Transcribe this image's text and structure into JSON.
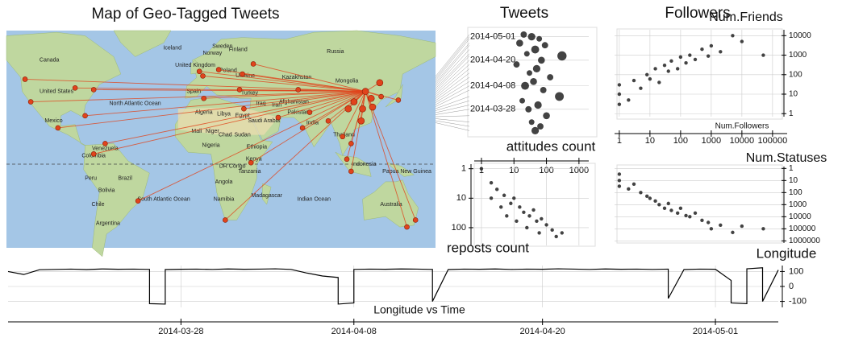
{
  "chart_data": [
    {
      "type": "map",
      "title": "Map of Geo-Tagged Tweets",
      "color": "#e0441c",
      "labels": [
        "Iceland",
        "Sweden",
        "Finland",
        "Norway",
        "Russia",
        "Canada",
        "United Kingdom",
        "Poland",
        "Ukraine",
        "Kazakhstan",
        "Mongolia",
        "United States",
        "North Atlantic Ocean",
        "Spain",
        "Turkey",
        "Iran",
        "Iraq",
        "Afghanistan",
        "Pakistan",
        "Algeria",
        "Libya",
        "Egypt",
        "Saudi Arabia",
        "India",
        "Thailand",
        "Mexico",
        "Mali",
        "Niger",
        "Chad",
        "Sudan",
        "Nigeria",
        "Ethiopia",
        "Venezuela",
        "Colombia",
        "DR Congo",
        "Tanzania",
        "Kenya",
        "Brazil",
        "Peru",
        "Bolivia",
        "Angola",
        "Namibia",
        "Madagascar",
        "Chile",
        "Indian Ocean",
        "South Atlantic Ocean",
        "Argentina",
        "Australia",
        "Indonesia",
        "Papua New Guinea"
      ],
      "lon": [
        116,
        121,
        113,
        104,
        120,
        114,
        108,
        126,
        -74,
        -118,
        -99,
        -87,
        -122,
        -80,
        -0.1,
        2.3,
        13.4,
        37.6,
        30,
        28,
        55,
        77,
        72,
        100,
        106,
        103,
        106,
        151,
        145,
        31,
        3,
        -66,
        -74,
        -43,
        36,
        18,
        69,
        90,
        127,
        139
      ],
      "lat": [
        40,
        31,
        23,
        30,
        36,
        30,
        34,
        45,
        41,
        34,
        19,
        42,
        47,
        26,
        51.5,
        48.9,
        52.5,
        55.8,
        50,
        41,
        25,
        28,
        19,
        14,
        10,
        1,
        -6,
        -34,
        -38,
        30,
        36,
        10,
        4,
        -23,
        -1,
        -34,
        41,
        23,
        37,
        35
      ]
    },
    {
      "type": "bubble",
      "title": "Tweets",
      "color": "#222222",
      "log_x": true,
      "xlim": [
        0.6,
        2000
      ],
      "x": [
        20,
        35,
        60,
        15,
        90,
        45,
        25,
        300,
        70,
        12,
        50,
        30,
        130,
        40,
        22,
        80,
        250,
        18,
        55,
        28,
        100,
        35,
        65,
        45
      ],
      "y": [
        "2014-05-02",
        "2014-05-01",
        "2014-04-30",
        "2014-04-28",
        "2014-04-27",
        "2014-04-25",
        "2014-04-23",
        "2014-04-22",
        "2014-04-20",
        "2014-04-18",
        "2014-04-16",
        "2014-04-14",
        "2014-04-12",
        "2014-04-10",
        "2014-04-08",
        "2014-04-06",
        "2014-04-03",
        "2014-04-01",
        "2014-03-30",
        "2014-03-28",
        "2014-03-25",
        "2014-03-22",
        "2014-03-20",
        "2014-03-18"
      ],
      "sizes": [
        3,
        5,
        2,
        4,
        3,
        6,
        2,
        9,
        4,
        3,
        5,
        2,
        3,
        4,
        6,
        3,
        8,
        2,
        5,
        3,
        4,
        2,
        3,
        5
      ],
      "ylim": [
        "2014-03-17",
        "2014-05-05"
      ],
      "yticks": [
        "2014-05-01",
        "2014-04-20",
        "2014-04-08",
        "2014-03-28"
      ]
    },
    {
      "type": "scatter",
      "title": "Followers",
      "x_label": "Num.Followers",
      "y_label": "Num.Friends",
      "color": "#222222",
      "log_x": true,
      "log_y": true,
      "grid": true,
      "x": [
        1,
        1,
        1,
        2,
        3,
        5,
        8,
        10,
        15,
        20,
        30,
        40,
        50,
        80,
        100,
        150,
        200,
        300,
        500,
        800,
        1000,
        2000,
        5000,
        10000,
        50000
      ],
      "y": [
        10,
        3,
        30,
        5,
        50,
        20,
        100,
        60,
        200,
        40,
        300,
        150,
        500,
        200,
        800,
        400,
        1000,
        600,
        2000,
        900,
        3000,
        1500,
        10000,
        5000,
        1000
      ],
      "xlim": [
        0.7,
        300000
      ],
      "ylim": [
        0.7,
        20000
      ],
      "xticks": [
        1,
        10,
        100,
        1000,
        10000,
        100000
      ],
      "yticks": [
        1,
        10,
        100,
        1000,
        10000
      ]
    },
    {
      "type": "scatter",
      "y_label": "Num.Statuses",
      "color": "#222222",
      "log_x": true,
      "log_y": true,
      "y_inverted": true,
      "grid": true,
      "x": [
        1,
        1,
        1,
        2,
        3,
        5,
        8,
        10,
        15,
        20,
        30,
        40,
        50,
        80,
        100,
        150,
        200,
        300,
        500,
        800,
        1000,
        2000,
        5000,
        10000,
        50000
      ],
      "y": [
        10,
        3,
        30,
        50,
        20,
        100,
        200,
        300,
        500,
        1000,
        2000,
        800,
        3000,
        5000,
        2000,
        8000,
        10000,
        5000,
        20000,
        30000,
        100000,
        50000,
        200000,
        60000,
        100000
      ],
      "xlim": [
        0.7,
        300000
      ],
      "ylim": [
        0.7,
        1500000
      ],
      "yticks": [
        1,
        10,
        100,
        1000,
        10000,
        100000,
        1000000
      ]
    },
    {
      "type": "scatter",
      "x_label": "attitudes count",
      "y_label": "reposts count",
      "color": "#222222",
      "log_x": true,
      "log_y": true,
      "y_inverted": true,
      "grid": true,
      "x": [
        1,
        2,
        3,
        5,
        8,
        10,
        15,
        20,
        30,
        40,
        50,
        70,
        100,
        150,
        200,
        300,
        2,
        4,
        6,
        12,
        25,
        60
      ],
      "y": [
        1,
        3,
        5,
        8,
        15,
        10,
        20,
        30,
        40,
        25,
        60,
        50,
        80,
        120,
        200,
        150,
        10,
        20,
        40,
        60,
        100,
        150
      ],
      "xlim": [
        0.6,
        2000
      ],
      "ylim": [
        0.7,
        400
      ],
      "xticks": [
        1,
        10,
        100,
        1000
      ],
      "yticks": [
        1,
        10,
        100
      ]
    },
    {
      "type": "line",
      "title": "Longitude vs Time",
      "y_label": "Longitude",
      "color": "#000000",
      "grid": true,
      "x": [
        "2014-03-17",
        "2014-03-18",
        "2014-03-19",
        "2014-03-20",
        "2014-03-21",
        "2014-03-22",
        "2014-03-23",
        "2014-03-24",
        "2014-03-25",
        "2014-03-26",
        "2014-03-26",
        "2014-03-27",
        "2014-03-27",
        "2014-03-28",
        "2014-03-29",
        "2014-03-30",
        "2014-03-31",
        "2014-04-01",
        "2014-04-02",
        "2014-04-03",
        "2014-04-04",
        "2014-04-05",
        "2014-04-06",
        "2014-04-07",
        "2014-04-07",
        "2014-04-08",
        "2014-04-08",
        "2014-04-09",
        "2014-04-10",
        "2014-04-11",
        "2014-04-12",
        "2014-04-13",
        "2014-04-13",
        "2014-04-14",
        "2014-04-15",
        "2014-04-16",
        "2014-04-17",
        "2014-04-18",
        "2014-04-19",
        "2014-04-20",
        "2014-04-21",
        "2014-04-22",
        "2014-04-23",
        "2014-04-24",
        "2014-04-25",
        "2014-04-26",
        "2014-04-27",
        "2014-04-28",
        "2014-04-28",
        "2014-04-29",
        "2014-04-30",
        "2014-05-01",
        "2014-05-02",
        "2014-05-02",
        "2014-05-03",
        "2014-05-03",
        "2014-05-04",
        "2014-05-04",
        "2014-05-05"
      ],
      "values": [
        100,
        80,
        112,
        114,
        116,
        113,
        117,
        115,
        116,
        114,
        -115,
        -118,
        113,
        115,
        116,
        114,
        117,
        115,
        116,
        118,
        114,
        90,
        70,
        60,
        -118,
        -110,
        114,
        116,
        115,
        117,
        116,
        114,
        -100,
        113,
        116,
        115,
        117,
        114,
        116,
        115,
        118,
        116,
        114,
        117,
        115,
        116,
        114,
        116,
        -80,
        113,
        116,
        115,
        40,
        -110,
        -115,
        118,
        125,
        -100,
        110
      ],
      "xlim": [
        "2014-03-17",
        "2014-05-05"
      ],
      "xticks": [
        "2014-03-28",
        "2014-04-08",
        "2014-04-20",
        "2014-05-01"
      ],
      "ylim": [
        -140,
        140
      ],
      "yticks": [
        100,
        0,
        -100
      ]
    }
  ]
}
